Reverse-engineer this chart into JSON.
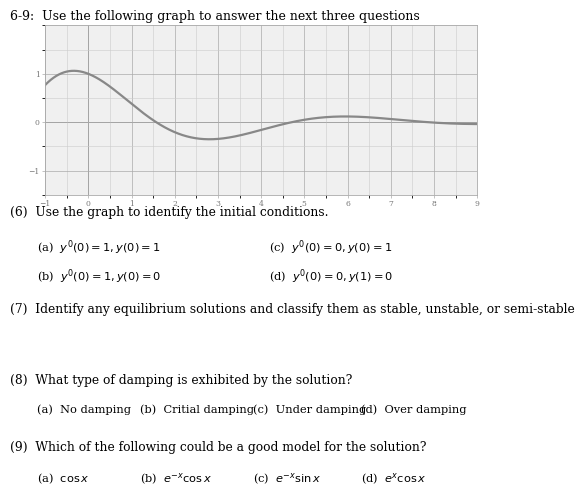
{
  "title": "6-9:  Use the following graph to answer the next three questions",
  "graph": {
    "xlim": [
      -1,
      9
    ],
    "ylim": [
      -1.5,
      2.0
    ],
    "xticks": [
      -1,
      0,
      1,
      2,
      3,
      4,
      5,
      6,
      7,
      8,
      9
    ],
    "yticks": [
      -1,
      0,
      1
    ],
    "curve_color": "#888888",
    "curve_linewidth": 1.6,
    "grid_color": "#cccccc",
    "grid_linewidth": 0.4,
    "bg_color": "#f0f0f0"
  },
  "q6_text": "(6)  Use the graph to identify the initial conditions.",
  "q6_a": "(a)  $y'(0) = 1, y(0) = 1$",
  "q6_b": "(b)  $y'(0) = 1, y(0) = 0$",
  "q6_c": "(c)  $y'(0) = 0, y(0) = 1$",
  "q6_d": "(d)  $y'(0) = 0, y(1) = 0$",
  "q7_text": "(7)  Identify any equilibrium solutions and classify them as stable, unstable, or semi-stable",
  "q8_text": "(8)  What type of damping is exhibited by the solution?",
  "q8_a": "(a)  No damping",
  "q8_b": "(b)  Critial damping",
  "q8_c": "(c)  Under damping",
  "q8_d": "(d)  Over damping",
  "q9_text": "(9)  Which of the following could be a good model for the solution?",
  "q9_a": "(a)  $\\cos x$",
  "q9_b": "(b)  $e^{-x}\\cos x$",
  "q9_c": "(c)  $e^{-x}\\sin x$",
  "q9_d": "(d)  $e^{x}\\cos x$"
}
